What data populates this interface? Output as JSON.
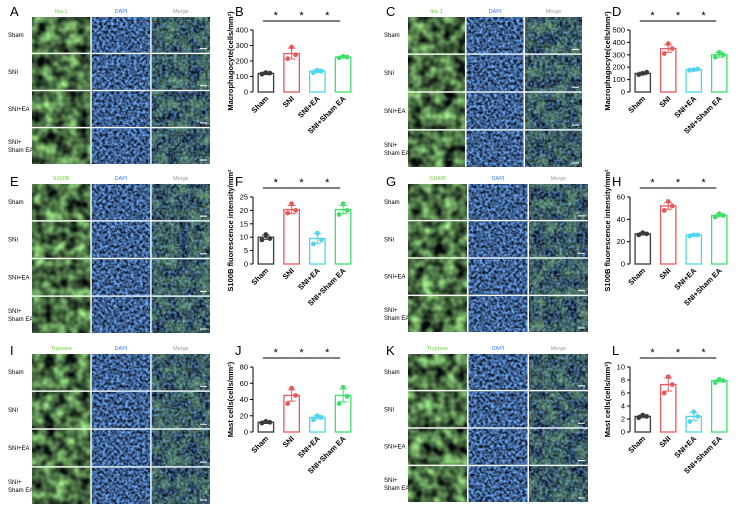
{
  "figure": {
    "groups": [
      "Sham",
      "SNI",
      "SNI+EA",
      "SNI+ Sham EA"
    ],
    "group_colors": [
      "#3a3a3a",
      "#e85a5a",
      "#4fd6ee",
      "#3fe06a"
    ],
    "stain_colors": {
      "green": "#6fcf3a",
      "blue": "#3a7bff",
      "merge": "#9a9a9a"
    },
    "micrograph_panels": [
      {
        "letter": "A",
        "channels": [
          "Iba-1",
          "DAPI",
          "Merge"
        ]
      },
      {
        "letter": "C",
        "channels": [
          "Iba-1",
          "DAPI",
          "Merge"
        ]
      },
      {
        "letter": "E",
        "channels": [
          "S100B",
          "DAPI",
          "Merge"
        ]
      },
      {
        "letter": "G",
        "channels": [
          "S100B",
          "DAPI",
          "Merge"
        ]
      },
      {
        "letter": "I",
        "channels": [
          "Tryptase",
          "DAPI",
          "Merge"
        ]
      },
      {
        "letter": "K",
        "channels": [
          "Tryptase",
          "DAPI",
          "Merge"
        ]
      }
    ]
  },
  "chart_data": [
    {
      "letter": "B",
      "type": "bar",
      "ylabel": "Macrophagocyte(cells/mm²)",
      "categories": [
        "Sham",
        "SNI",
        "SNI+EA",
        "SNI+Sham EA"
      ],
      "values": [
        120,
        248,
        135,
        225
      ],
      "errors": [
        8,
        35,
        10,
        5
      ],
      "points": [
        [
          115,
          122,
          125
        ],
        [
          215,
          240,
          290
        ],
        [
          125,
          135,
          140
        ],
        [
          220,
          225,
          230
        ]
      ],
      "ylim": [
        0,
        400
      ],
      "ticks": [
        "0",
        "100",
        "200",
        "300",
        "400"
      ],
      "sig": [
        [
          "*",
          0,
          1
        ],
        [
          "*",
          1,
          2
        ],
        [
          "*",
          2,
          3
        ]
      ]
    },
    {
      "letter": "D",
      "type": "bar",
      "ylabel": "Macrophagocyte(cells/mm²)",
      "categories": [
        "Sham",
        "SNI",
        "SNI+EA",
        "SNI+Sham EA"
      ],
      "values": [
        150,
        350,
        180,
        300
      ],
      "errors": [
        10,
        30,
        8,
        20
      ],
      "points": [
        [
          140,
          160,
          150
        ],
        [
          310,
          350,
          390
        ],
        [
          175,
          185,
          180
        ],
        [
          280,
          300,
          320
        ]
      ],
      "ylim": [
        0,
        500
      ],
      "ticks": [
        "0",
        "100",
        "200",
        "300",
        "400",
        "500"
      ],
      "sig": [
        [
          "*",
          0,
          1
        ],
        [
          "*",
          1,
          2
        ],
        [
          "*",
          2,
          3
        ]
      ]
    },
    {
      "letter": "F",
      "type": "bar",
      "ylabel": "S100B fluorescence intensity/mm²",
      "categories": [
        "Sham",
        "SNI",
        "SNI+EA",
        "SNI+Sham EA"
      ],
      "values": [
        10,
        20.3,
        9.5,
        20.3
      ],
      "errors": [
        0.8,
        1.5,
        1.8,
        1.5
      ],
      "points": [
        [
          9,
          9.5,
          11
        ],
        [
          19,
          20,
          22.5
        ],
        [
          7.5,
          9,
          11.5
        ],
        [
          18.5,
          20,
          22.5
        ]
      ],
      "ylim": [
        0,
        25
      ],
      "ticks": [
        "0",
        "5",
        "10",
        "15",
        "20",
        "25"
      ],
      "sig": [
        [
          "*",
          0,
          1
        ],
        [
          "*",
          1,
          2
        ],
        [
          "*",
          2,
          3
        ]
      ]
    },
    {
      "letter": "H",
      "type": "bar",
      "ylabel": "S100B fluorescence intensity/mm²",
      "categories": [
        "Sham",
        "SNI",
        "SNI+EA",
        "SNI+Sham EA"
      ],
      "values": [
        27,
        52,
        26,
        43.5
      ],
      "errors": [
        1,
        3,
        1,
        1
      ],
      "points": [
        [
          26,
          27,
          28
        ],
        [
          48,
          52,
          56
        ],
        [
          25,
          26,
          26
        ],
        [
          42,
          43.5,
          45
        ]
      ],
      "ylim": [
        0,
        60
      ],
      "ticks": [
        "0",
        "20",
        "40",
        "60"
      ],
      "sig": [
        [
          "*",
          0,
          1
        ],
        [
          "*",
          1,
          2
        ],
        [
          "*",
          2,
          3
        ]
      ]
    },
    {
      "letter": "J",
      "type": "bar",
      "ylabel": "Mast cells(cells/mm²)",
      "categories": [
        "Sham",
        "SNI",
        "SNI+EA",
        "SNI+Sham EA"
      ],
      "values": [
        12,
        45,
        18,
        45
      ],
      "errors": [
        1.5,
        7,
        2,
        8
      ],
      "points": [
        [
          11,
          12,
          13
        ],
        [
          35,
          45,
          54
        ],
        [
          15,
          18,
          20
        ],
        [
          35,
          44,
          55
        ]
      ],
      "ylim": [
        0,
        80
      ],
      "ticks": [
        "0",
        "20",
        "40",
        "60",
        "80"
      ],
      "sig": [
        [
          "*",
          0,
          1
        ],
        [
          "*",
          1,
          2
        ],
        [
          "*",
          2,
          3
        ]
      ]
    },
    {
      "letter": "L",
      "type": "bar",
      "ylabel": "Mast cells(cells/mm²)",
      "categories": [
        "Sham",
        "SNI",
        "SNI+EA",
        "SNI+Sham EA"
      ],
      "values": [
        2.4,
        7.3,
        2.4,
        7.9
      ],
      "errors": [
        0.2,
        1.0,
        0.6,
        0.2
      ],
      "points": [
        [
          2.2,
          2.4,
          2.6
        ],
        [
          6.0,
          7.3,
          8.5
        ],
        [
          1.6,
          2.4,
          3.1
        ],
        [
          7.6,
          7.9,
          8.1
        ]
      ],
      "ylim": [
        0,
        10
      ],
      "ticks": [
        "0",
        "2",
        "4",
        "6",
        "8",
        "10"
      ],
      "sig": [
        [
          "*",
          0,
          1
        ],
        [
          "*",
          1,
          2
        ],
        [
          "*",
          2,
          3
        ]
      ]
    }
  ]
}
